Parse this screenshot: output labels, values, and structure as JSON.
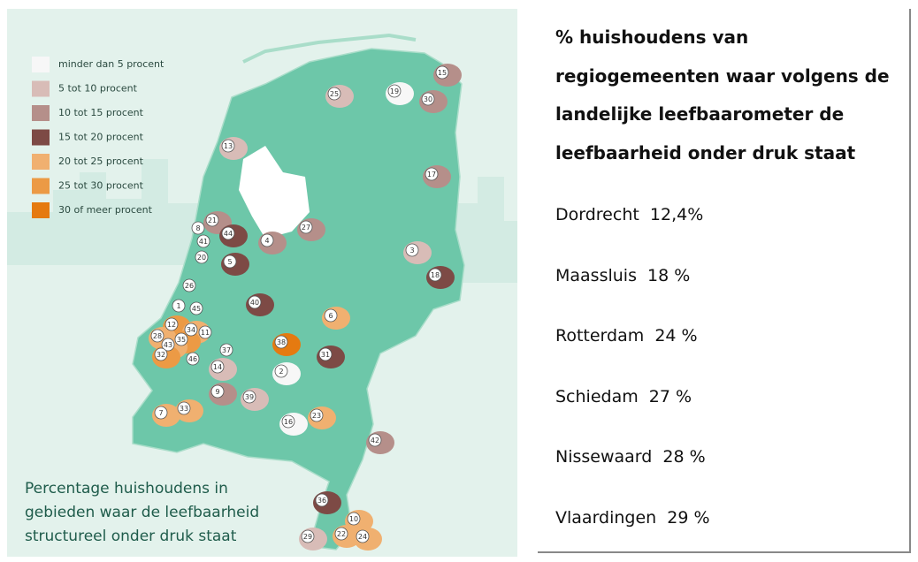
{
  "legend": {
    "items": [
      "minder dan 5 procent",
      "5 tot 10 procent",
      "10 tot 15 procent",
      "15 tot 20 procent",
      "20 tot 25 procent",
      "25 tot 30 procent",
      "30 of meer procent"
    ]
  },
  "map": {
    "caption": [
      "Percentage huishoudens in",
      "gebieden waar de leefbaarheid",
      "structureel onder druk staat"
    ],
    "labels": [
      "15",
      "25",
      "19",
      "30",
      "13",
      "17",
      "21",
      "8",
      "44",
      "41",
      "27",
      "4",
      "20",
      "5",
      "3",
      "18",
      "26",
      "1",
      "45",
      "40",
      "6",
      "12",
      "34",
      "28",
      "35",
      "11",
      "43",
      "38",
      "32",
      "37",
      "46",
      "31",
      "14",
      "2",
      "9",
      "39",
      "16",
      "23",
      "7",
      "33",
      "42",
      "36",
      "10",
      "29",
      "22",
      "24"
    ]
  },
  "panel": {
    "title": [
      "% huishoudens van",
      "regiogemeenten waar volgens de",
      "landelijke leefbaarometer de",
      "leefbaarheid onder druk staat"
    ],
    "items": [
      "Dordrecht  12,4%",
      "Maassluis  18 %",
      "Rotterdam  24 %",
      "Schiedam  27 %",
      "Nissewaard  28 %",
      "Vlaardingen  29 %"
    ]
  }
}
